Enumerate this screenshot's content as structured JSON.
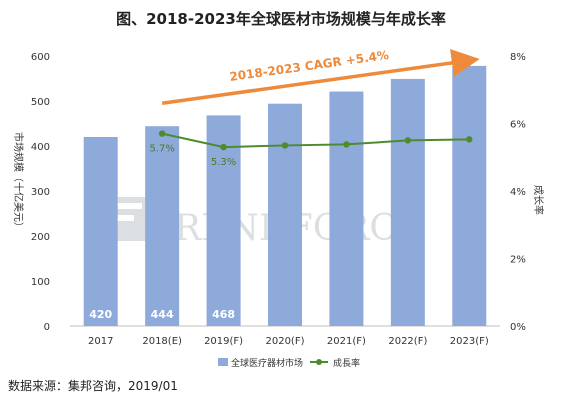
{
  "chart_data": {
    "type": "bar",
    "title": "图、2018-2023年全球医材市场规模与年成长率",
    "categories": [
      "2017",
      "2018(E)",
      "2019(F)",
      "2020(F)",
      "2021(F)",
      "2022(F)",
      "2023(F)"
    ],
    "series": [
      {
        "name": "全球医疗器材市场",
        "type": "bar",
        "axis": "left",
        "color": "#8eaadb",
        "values": [
          420,
          444,
          468,
          494,
          521,
          549,
          578
        ],
        "data_labels": [
          "420",
          "444",
          "468",
          "",
          "",
          "",
          ""
        ]
      },
      {
        "name": "成長率",
        "type": "line",
        "axis": "right",
        "color": "#4e8a2e",
        "values": [
          null,
          5.7,
          5.3,
          5.35,
          5.38,
          5.5,
          5.53
        ],
        "data_labels": [
          "",
          "5.7%",
          "5.3%",
          "",
          "",
          "",
          ""
        ]
      }
    ],
    "ylabel": "市场规模（十亿美元）",
    "y2label": "成长率",
    "ylim": [
      0,
      600
    ],
    "yticks": [
      "0",
      "100",
      "200",
      "300",
      "400",
      "500",
      "600"
    ],
    "y2lim": [
      0,
      8
    ],
    "y2ticks": [
      "0%",
      "2%",
      "4%",
      "6%",
      "8%"
    ],
    "annotation": {
      "text": "2018-2023 CAGR +5.4%",
      "color": "#ee8a3a",
      "from": {
        "x": "2018(E)",
        "y": 495
      },
      "to": {
        "x": "2023(F)",
        "y": 590
      }
    },
    "grid": false,
    "legend_position": "bottom"
  },
  "watermark": "TRENDFORCE",
  "source": "数据来源：集邦咨询，2019/01"
}
